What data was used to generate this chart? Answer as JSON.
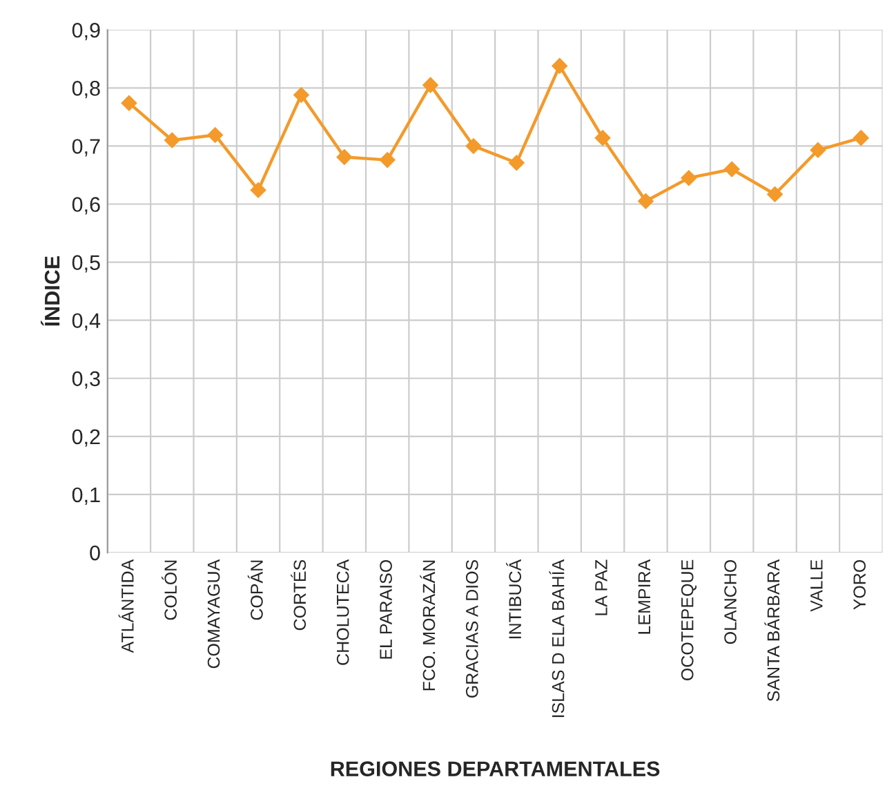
{
  "chart_data": {
    "type": "line",
    "xlabel": "REGIONES DEPARTAMENTALES",
    "ylabel": "ÍNDICE",
    "categories": [
      "ATLÁNTIDA",
      "COLÓN",
      "COMAYAGUA",
      "COPÁN",
      "CORTÉS",
      "CHOLUTECA",
      "EL PARAISO",
      "FCO. MORAZÁN",
      "GRACIAS A DIOS",
      "INTIBUCÁ",
      "ISLAS D ELA BAHÍA",
      "LA PAZ",
      "LEMPIRA",
      "OCOTEPEQUE",
      "OLANCHO",
      "SANTA BÁRBARA",
      "VALLE",
      "YORO"
    ],
    "series": [
      {
        "color": "#f39a2b",
        "values": [
          0.774,
          0.71,
          0.719,
          0.624,
          0.788,
          0.681,
          0.676,
          0.805,
          0.7,
          0.671,
          0.838,
          0.714,
          0.605,
          0.645,
          0.66,
          0.617,
          0.693,
          0.714
        ]
      }
    ],
    "ylim": [
      0,
      0.9
    ],
    "yticks": [
      {
        "value": 0,
        "label": "0"
      },
      {
        "value": 0.1,
        "label": "0,1"
      },
      {
        "value": 0.2,
        "label": "0,2"
      },
      {
        "value": 0.3,
        "label": "0,3"
      },
      {
        "value": 0.4,
        "label": "0,4"
      },
      {
        "value": 0.5,
        "label": "0,5"
      },
      {
        "value": 0.6,
        "label": "0,6"
      },
      {
        "value": 0.7,
        "label": "0,7"
      },
      {
        "value": 0.8,
        "label": "0,8"
      },
      {
        "value": 0.9,
        "label": "0,9"
      }
    ],
    "grid": true,
    "legend": false,
    "marker": "diamond",
    "line_style": "solid"
  }
}
